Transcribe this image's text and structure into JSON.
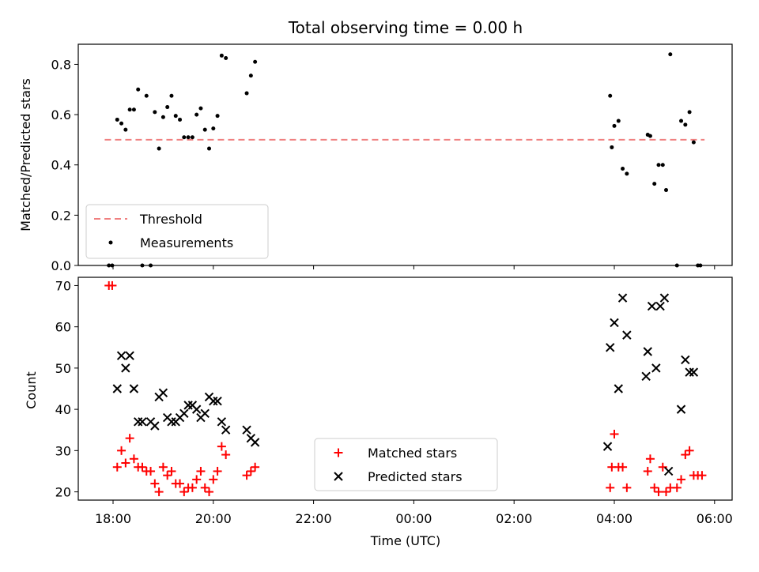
{
  "figure": {
    "title": "Total observing time = 0.00 h"
  },
  "chart_data": [
    {
      "type": "scatter",
      "ylabel": "Matched/Predicted stars",
      "xlabel": "",
      "ylim": [
        0,
        0.88
      ],
      "yticks": [
        "0.0",
        "0.2",
        "0.4",
        "0.6",
        "0.8"
      ],
      "xticks_visible_labels": false,
      "legend": [
        "Threshold",
        "Measurements"
      ],
      "legend_position": "lower-left",
      "threshold": {
        "name": "Threshold",
        "value": 0.5,
        "x_start": "17:50",
        "x_end": "05:48",
        "color": "#f08080"
      },
      "series": [
        {
          "name": "Measurements",
          "color": "#000000",
          "points": [
            [
              "17:55",
              0.0
            ],
            [
              "17:59",
              0.0
            ],
            [
              "18:05",
              0.58
            ],
            [
              "18:10",
              0.565
            ],
            [
              "18:15",
              0.54
            ],
            [
              "18:20",
              0.62
            ],
            [
              "18:25",
              0.62
            ],
            [
              "18:30",
              0.7
            ],
            [
              "18:35",
              0.0
            ],
            [
              "18:40",
              0.675
            ],
            [
              "18:45",
              0.0
            ],
            [
              "18:50",
              0.61
            ],
            [
              "18:55",
              0.465
            ],
            [
              "19:00",
              0.59
            ],
            [
              "19:05",
              0.63
            ],
            [
              "19:10",
              0.675
            ],
            [
              "19:15",
              0.595
            ],
            [
              "19:20",
              0.58
            ],
            [
              "19:25",
              0.51
            ],
            [
              "19:30",
              0.51
            ],
            [
              "19:35",
              0.51
            ],
            [
              "19:40",
              0.6
            ],
            [
              "19:45",
              0.625
            ],
            [
              "19:50",
              0.54
            ],
            [
              "19:55",
              0.465
            ],
            [
              "20:00",
              0.545
            ],
            [
              "20:05",
              0.595
            ],
            [
              "20:10",
              0.835
            ],
            [
              "20:15",
              0.825
            ],
            [
              "20:40",
              0.685
            ],
            [
              "20:45",
              0.755
            ],
            [
              "20:50",
              0.81
            ],
            [
              "03:55",
              0.675
            ],
            [
              "03:57",
              0.47
            ],
            [
              "04:00",
              0.555
            ],
            [
              "04:05",
              0.575
            ],
            [
              "04:10",
              0.385
            ],
            [
              "04:15",
              0.365
            ],
            [
              "04:40",
              0.52
            ],
            [
              "04:43",
              0.515
            ],
            [
              "04:48",
              0.325
            ],
            [
              "04:53",
              0.4
            ],
            [
              "04:58",
              0.4
            ],
            [
              "05:02",
              0.3
            ],
            [
              "05:07",
              0.84
            ],
            [
              "05:15",
              0.0
            ],
            [
              "05:20",
              0.575
            ],
            [
              "05:25",
              0.56
            ],
            [
              "05:30",
              0.61
            ],
            [
              "05:35",
              0.49
            ],
            [
              "05:40",
              0.0
            ],
            [
              "05:43",
              0.0
            ]
          ]
        }
      ]
    },
    {
      "type": "scatter",
      "ylabel": "Count",
      "xlabel": "Time (UTC)",
      "ylim": [
        18,
        72
      ],
      "yticks": [
        "20",
        "30",
        "40",
        "50",
        "60",
        "70"
      ],
      "xticks": [
        "18:00",
        "20:00",
        "22:00",
        "00:00",
        "02:00",
        "04:00",
        "06:00"
      ],
      "legend": [
        "Matched stars",
        "Predicted stars"
      ],
      "legend_position": "lower-center",
      "series": [
        {
          "name": "Matched stars",
          "marker": "plus",
          "color": "#ff0000",
          "points": [
            [
              "17:55",
              70
            ],
            [
              "17:59",
              70
            ],
            [
              "18:05",
              26
            ],
            [
              "18:10",
              30
            ],
            [
              "18:15",
              27
            ],
            [
              "18:20",
              33
            ],
            [
              "18:25",
              28
            ],
            [
              "18:30",
              26
            ],
            [
              "18:35",
              26
            ],
            [
              "18:40",
              25
            ],
            [
              "18:45",
              25
            ],
            [
              "18:50",
              22
            ],
            [
              "18:55",
              20
            ],
            [
              "19:00",
              26
            ],
            [
              "19:05",
              24
            ],
            [
              "19:10",
              25
            ],
            [
              "19:15",
              22
            ],
            [
              "19:20",
              22
            ],
            [
              "19:25",
              20
            ],
            [
              "19:30",
              21
            ],
            [
              "19:35",
              21
            ],
            [
              "19:40",
              23
            ],
            [
              "19:45",
              25
            ],
            [
              "19:50",
              21
            ],
            [
              "19:55",
              20
            ],
            [
              "20:00",
              23
            ],
            [
              "20:05",
              25
            ],
            [
              "20:10",
              31
            ],
            [
              "20:15",
              29
            ],
            [
              "20:40",
              24
            ],
            [
              "20:45",
              25
            ],
            [
              "20:50",
              26
            ],
            [
              "03:55",
              21
            ],
            [
              "03:57",
              26
            ],
            [
              "04:00",
              34
            ],
            [
              "04:05",
              26
            ],
            [
              "04:10",
              26
            ],
            [
              "04:15",
              21
            ],
            [
              "04:40",
              25
            ],
            [
              "04:43",
              28
            ],
            [
              "04:48",
              21
            ],
            [
              "04:53",
              20
            ],
            [
              "04:58",
              26
            ],
            [
              "05:02",
              20
            ],
            [
              "05:07",
              21
            ],
            [
              "05:15",
              21
            ],
            [
              "05:20",
              23
            ],
            [
              "05:25",
              29
            ],
            [
              "05:30",
              30
            ],
            [
              "05:35",
              24
            ],
            [
              "05:40",
              24
            ],
            [
              "05:45",
              24
            ]
          ]
        },
        {
          "name": "Predicted stars",
          "marker": "x",
          "color": "#000000",
          "points": [
            [
              "18:05",
              45
            ],
            [
              "18:10",
              53
            ],
            [
              "18:15",
              50
            ],
            [
              "18:20",
              53
            ],
            [
              "18:25",
              45
            ],
            [
              "18:30",
              37
            ],
            [
              "18:35",
              37
            ],
            [
              "18:45",
              37
            ],
            [
              "18:50",
              36
            ],
            [
              "18:55",
              43
            ],
            [
              "19:00",
              44
            ],
            [
              "19:05",
              38
            ],
            [
              "19:10",
              37
            ],
            [
              "19:15",
              37
            ],
            [
              "19:20",
              38
            ],
            [
              "19:25",
              39
            ],
            [
              "19:30",
              41
            ],
            [
              "19:35",
              41
            ],
            [
              "19:40",
              40
            ],
            [
              "19:45",
              38
            ],
            [
              "19:50",
              39
            ],
            [
              "19:55",
              43
            ],
            [
              "20:00",
              42
            ],
            [
              "20:05",
              42
            ],
            [
              "20:10",
              37
            ],
            [
              "20:15",
              35
            ],
            [
              "20:40",
              35
            ],
            [
              "20:45",
              33
            ],
            [
              "20:50",
              32
            ],
            [
              "03:52",
              31
            ],
            [
              "03:55",
              55
            ],
            [
              "04:00",
              61
            ],
            [
              "04:05",
              45
            ],
            [
              "04:10",
              67
            ],
            [
              "04:15",
              58
            ],
            [
              "04:38",
              48
            ],
            [
              "04:40",
              54
            ],
            [
              "04:45",
              65
            ],
            [
              "04:50",
              50
            ],
            [
              "04:55",
              65
            ],
            [
              "05:00",
              67
            ],
            [
              "05:05",
              25
            ],
            [
              "05:20",
              40
            ],
            [
              "05:25",
              52
            ],
            [
              "05:30",
              49
            ],
            [
              "05:35",
              49
            ]
          ]
        }
      ]
    }
  ]
}
